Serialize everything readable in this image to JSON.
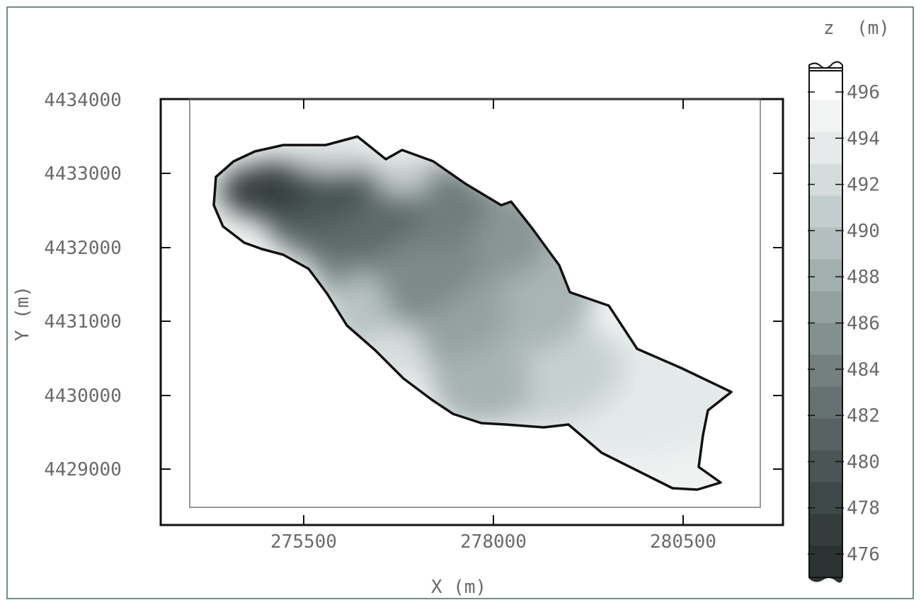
{
  "map": {
    "x_axis_label": "X (m)",
    "y_axis_label": "Y (m)",
    "x_ticks": [
      {
        "value": 275500,
        "label": "275500"
      },
      {
        "value": 278000,
        "label": "278000"
      },
      {
        "value": 280500,
        "label": "280500"
      }
    ],
    "y_ticks": [
      {
        "value": 4434000,
        "label": "4434000"
      },
      {
        "value": 4433000,
        "label": "4433000"
      },
      {
        "value": 4432000,
        "label": "4432000"
      },
      {
        "value": 4431000,
        "label": "4431000"
      },
      {
        "value": 4430000,
        "label": "4430000"
      },
      {
        "value": 4429000,
        "label": "4429000"
      }
    ]
  },
  "colorbar": {
    "title": "z  (m)",
    "ticks": [
      {
        "value": 496,
        "label": "496"
      },
      {
        "value": 494,
        "label": "494"
      },
      {
        "value": 492,
        "label": "492"
      },
      {
        "value": 490,
        "label": "490"
      },
      {
        "value": 488,
        "label": "488"
      },
      {
        "value": 486,
        "label": "486"
      },
      {
        "value": 484,
        "label": "484"
      },
      {
        "value": 482,
        "label": "482"
      },
      {
        "value": 480,
        "label": "480"
      },
      {
        "value": 478,
        "label": "478"
      },
      {
        "value": 476,
        "label": "476"
      }
    ],
    "colors_low_to_high": [
      "#2b3232",
      "#343c3c",
      "#3f4848",
      "#4b5555",
      "#586262",
      "#667171",
      "#748080",
      "#839090",
      "#92a0a0",
      "#a2afaf",
      "#b3bebe",
      "#c4cdcd",
      "#d6dcdc",
      "#e6eaea",
      "#f2f4f4",
      "#ffffff"
    ]
  }
}
